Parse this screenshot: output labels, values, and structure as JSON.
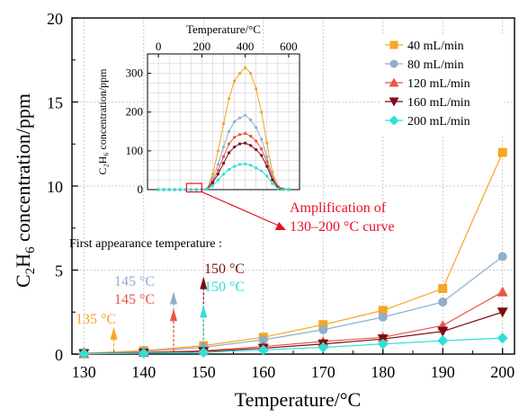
{
  "chart_data": [
    {
      "type": "line",
      "xlabel": "Temperature/°C",
      "ylabel_main": "C",
      "ylabel_sub": "2",
      "ylabel_mid": "H",
      "ylabel_sub2": "6",
      "ylabel_rest": " concentration/ppm",
      "xlim": [
        128,
        202
      ],
      "ylim": [
        0,
        20
      ],
      "x_ticks": [
        130,
        140,
        150,
        160,
        170,
        180,
        190,
        200
      ],
      "y_ticks": [
        0,
        5,
        10,
        15,
        20
      ],
      "grid": true,
      "legend_placement": "top-right",
      "x": [
        130,
        140,
        150,
        160,
        170,
        180,
        190,
        200
      ],
      "series": [
        {
          "name": "40 mL/min",
          "color": "#F5A623",
          "marker": "square",
          "values": [
            0.05,
            0.2,
            0.5,
            1.0,
            1.75,
            2.6,
            3.9,
            12.0
          ]
        },
        {
          "name": "80 mL/min",
          "color": "#8FAFCB",
          "marker": "circle",
          "values": [
            0.04,
            0.15,
            0.4,
            0.85,
            1.45,
            2.2,
            3.1,
            5.8
          ]
        },
        {
          "name": "120 mL/min",
          "color": "#E8564A",
          "marker": "triangle",
          "values": [
            0.03,
            0.1,
            0.2,
            0.45,
            0.75,
            1.0,
            1.7,
            3.7
          ]
        },
        {
          "name": "160 mL/min",
          "color": "#7A0E12",
          "marker": "tri-down",
          "values": [
            0.02,
            0.06,
            0.15,
            0.35,
            0.6,
            0.9,
            1.35,
            2.5
          ]
        },
        {
          "name": "200 mL/min",
          "color": "#2EE0D6",
          "marker": "diamond",
          "values": [
            0.02,
            0.05,
            0.1,
            0.25,
            0.4,
            0.6,
            0.8,
            0.95
          ]
        }
      ],
      "arrows": [
        {
          "x": 135,
          "y_from": 0.2,
          "y_to": 1.4,
          "color": "#F5A623"
        },
        {
          "x": 145,
          "y_from": 0.2,
          "y_to": 3.5,
          "color": "#8FAFCB"
        },
        {
          "x": 145,
          "y_from": 0.2,
          "y_to": 2.5,
          "color": "#E8564A"
        },
        {
          "x": 150,
          "y_from": 0.3,
          "y_to": 4.4,
          "color": "#7A0E12"
        },
        {
          "x": 150,
          "y_from": 0.3,
          "y_to": 2.7,
          "color": "#2EE0D6"
        }
      ],
      "annotations": {
        "first_appearance": "First appearance temperature :",
        "t135": "135 °C",
        "t145a": "145 °C",
        "t145b": "145 °C",
        "t150a": "150 °C",
        "t150b": "150 °C",
        "amp_line1": "Amplification of",
        "amp_line2": "130–200 °C curve"
      },
      "colors": {
        "annotation_red": "#E8102A"
      }
    },
    {
      "type": "line",
      "xlabel": "Temperature/°C",
      "ylabel": "C₂H₆ concentration/ppm",
      "xlim": [
        -50,
        650
      ],
      "ylim": [
        0,
        350
      ],
      "x_ticks": [
        0,
        200,
        400,
        600
      ],
      "y_ticks": [
        0,
        100,
        200,
        300
      ],
      "grid": true,
      "x": [
        0,
        25,
        50,
        75,
        100,
        125,
        150,
        175,
        200,
        225,
        250,
        275,
        300,
        325,
        350,
        375,
        400,
        425,
        450,
        475,
        500,
        525,
        550,
        575,
        600
      ],
      "series": [
        {
          "name": "40 mL/min",
          "color": "#F5A623",
          "values": [
            0,
            0,
            0,
            0,
            0,
            0,
            0,
            0,
            0,
            3,
            40,
            100,
            170,
            235,
            280,
            300,
            315,
            300,
            260,
            200,
            120,
            45,
            10,
            2,
            0
          ]
        },
        {
          "name": "80 mL/min",
          "color": "#8FAFCB",
          "values": [
            0,
            0,
            0,
            0,
            0,
            0,
            0,
            0,
            0,
            2,
            30,
            65,
            110,
            150,
            175,
            185,
            192,
            180,
            160,
            130,
            85,
            35,
            8,
            1,
            0
          ]
        },
        {
          "name": "120 mL/min",
          "color": "#E8564A",
          "values": [
            0,
            0,
            0,
            0,
            0,
            0,
            0,
            0,
            0,
            2,
            22,
            50,
            85,
            118,
            135,
            142,
            145,
            138,
            125,
            105,
            72,
            30,
            7,
            1,
            0
          ]
        },
        {
          "name": "160 mL/min",
          "color": "#7A0E12",
          "values": [
            0,
            0,
            0,
            0,
            0,
            0,
            0,
            0,
            0,
            1,
            18,
            40,
            68,
            95,
            110,
            118,
            120,
            114,
            103,
            88,
            60,
            25,
            5,
            1,
            0
          ]
        },
        {
          "name": "200 mL/min",
          "color": "#2EE0D6",
          "values": [
            0,
            0,
            0,
            0,
            0,
            0,
            0,
            0,
            0,
            1,
            10,
            25,
            40,
            52,
            60,
            65,
            66,
            63,
            56,
            48,
            35,
            15,
            3,
            0,
            0
          ]
        }
      ],
      "highlight_box": {
        "x_from": 130,
        "x_to": 200,
        "color": "#E8102A"
      }
    }
  ]
}
